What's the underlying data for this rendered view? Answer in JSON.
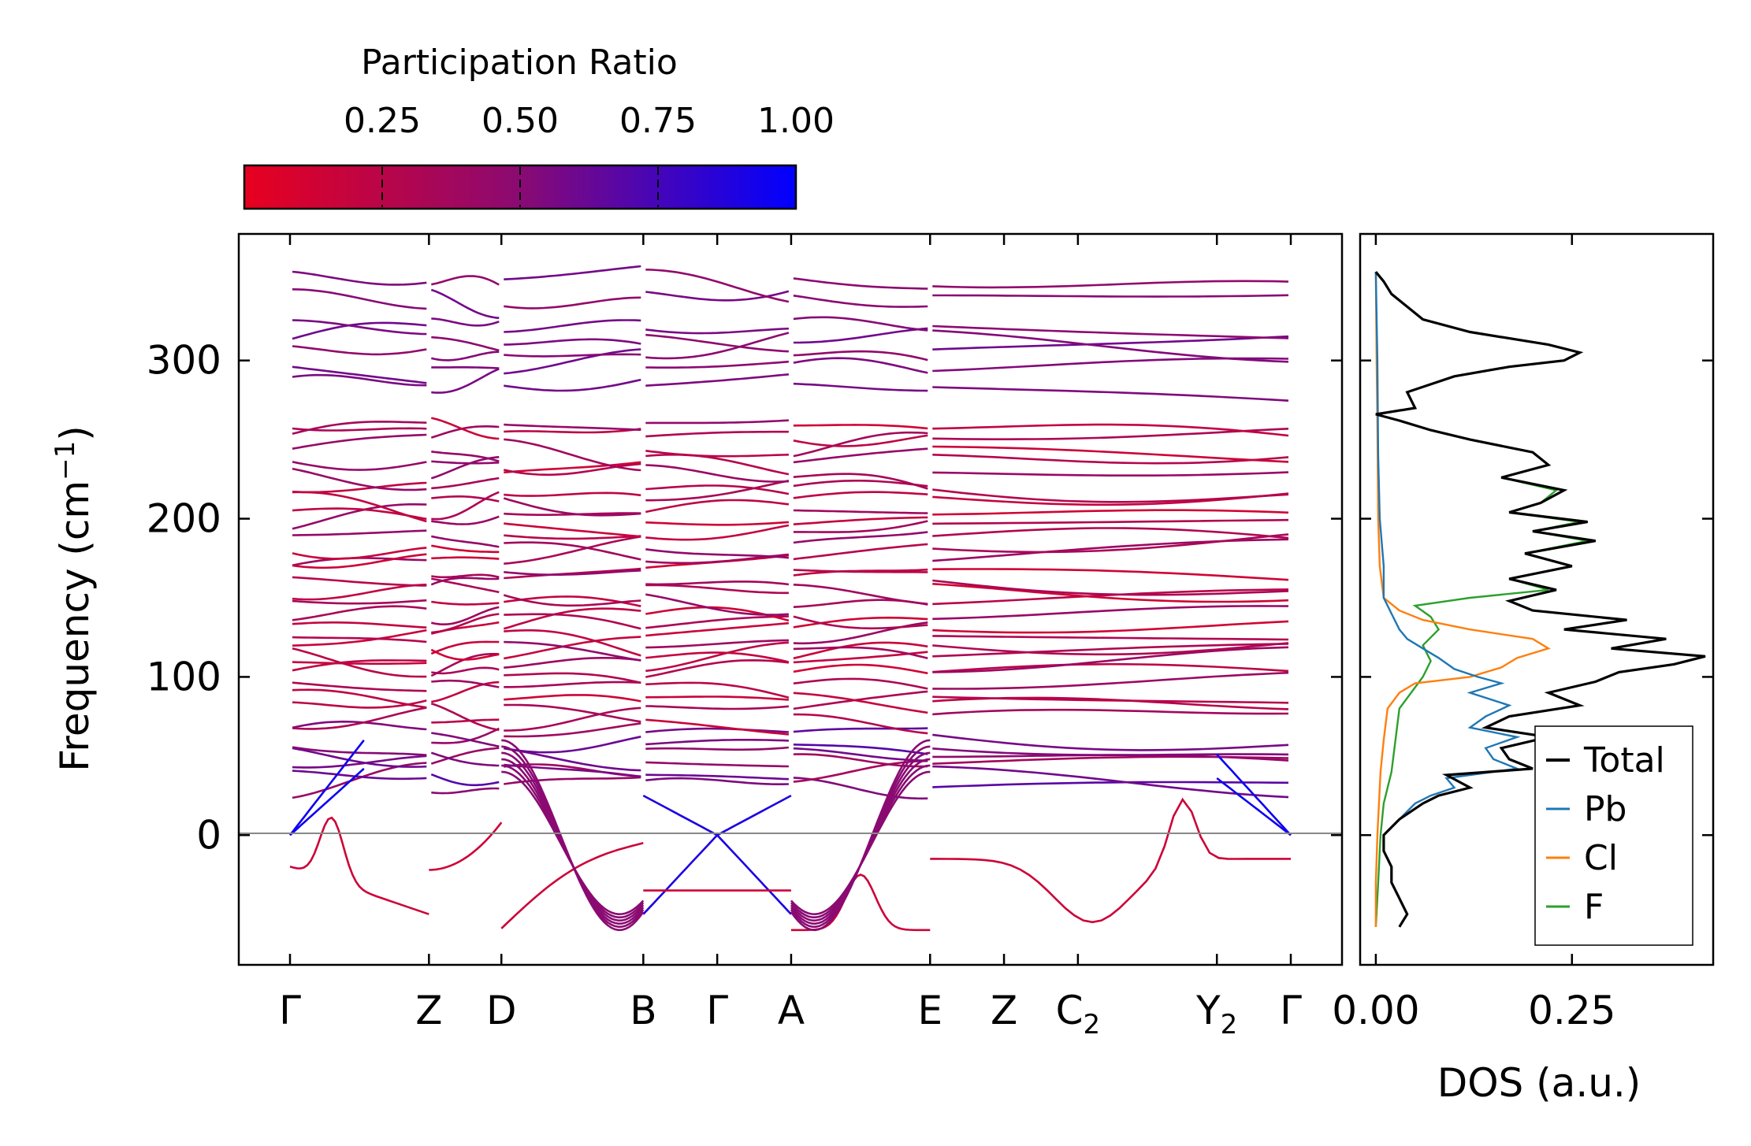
{
  "chart_data": [
    {
      "type": "line",
      "name": "phonon band structure",
      "ylabel": "Frequency (cm",
      "ylabel_sup": "−1",
      "ylabel_end": ")",
      "ylim": [
        -82,
        380
      ],
      "yticks": [
        0,
        100,
        200,
        300
      ],
      "k_path": [
        {
          "label": "Γ",
          "sub": "",
          "pos": 0.0
        },
        {
          "label": "Z",
          "sub": "",
          "pos": 0.94
        },
        {
          "label": "D",
          "sub": "",
          "pos": 1.43
        },
        {
          "label": "B",
          "sub": "",
          "pos": 2.39
        },
        {
          "label": "Γ",
          "sub": "",
          "pos": 2.89
        },
        {
          "label": "A",
          "sub": "",
          "pos": 3.39
        },
        {
          "label": "E",
          "sub": "",
          "pos": 4.33
        },
        {
          "label": "Z",
          "sub": "",
          "pos": 4.83
        },
        {
          "label": "C",
          "sub": "2",
          "pos": 5.33
        },
        {
          "label": "Y",
          "sub": "2",
          "pos": 6.27
        },
        {
          "label": "Γ",
          "sub": "",
          "pos": 6.77
        }
      ],
      "branch_breaks": [
        0.94,
        1.43,
        2.39,
        3.39,
        4.33
      ],
      "colorbar": {
        "title": "Participation Ratio",
        "range": [
          0.0,
          1.0
        ],
        "ticks": [
          "0.25",
          "0.50",
          "0.75",
          "1.00"
        ],
        "low_color": "#e8001f",
        "mid_color": "#8a0a72",
        "high_color": "#0000ff"
      },
      "acoustic_modes": {
        "start_values": [
          0,
          0,
          0
        ],
        "note": "three acoustic branches start at 0 at Γ"
      },
      "optical_band_levels": [
        30,
        38,
        46,
        52,
        58,
        64,
        72,
        80,
        88,
        96,
        103,
        109,
        114,
        120,
        126,
        132,
        140,
        148,
        155,
        162,
        168,
        175,
        183,
        190,
        197,
        205,
        213,
        220,
        228,
        236,
        244,
        252,
        260,
        284,
        296,
        306,
        314,
        322,
        340,
        352
      ],
      "imaginary_modes_min": -60
    },
    {
      "type": "line",
      "name": "phonon density of states",
      "xlabel": "DOS (a.u.)",
      "xlim": [
        -0.02,
        0.43
      ],
      "xticks": [
        "0.00",
        "0.25"
      ],
      "xtick_values": [
        0.0,
        0.25
      ],
      "ylim": [
        -82,
        380
      ],
      "series": [
        {
          "name": "Total",
          "color": "#000000",
          "freq": [
            -58,
            -50,
            -40,
            -30,
            -20,
            -10,
            0,
            10,
            20,
            25,
            30,
            38,
            42,
            48,
            55,
            62,
            68,
            75,
            82,
            90,
            97,
            103,
            108,
            113,
            118,
            124,
            130,
            136,
            142,
            148,
            155,
            162,
            170,
            178,
            186,
            192,
            198,
            204,
            210,
            218,
            226,
            234,
            242,
            250,
            256,
            262,
            266,
            270,
            280,
            290,
            296,
            300,
            305,
            310,
            318,
            326,
            334,
            342,
            350,
            356
          ],
          "dos": [
            0.03,
            0.04,
            0.03,
            0.02,
            0.02,
            0.01,
            0.01,
            0.03,
            0.06,
            0.08,
            0.12,
            0.09,
            0.2,
            0.17,
            0.16,
            0.22,
            0.14,
            0.17,
            0.26,
            0.22,
            0.28,
            0.31,
            0.38,
            0.42,
            0.3,
            0.37,
            0.24,
            0.32,
            0.2,
            0.17,
            0.23,
            0.17,
            0.25,
            0.19,
            0.28,
            0.2,
            0.27,
            0.17,
            0.21,
            0.24,
            0.16,
            0.22,
            0.2,
            0.12,
            0.07,
            0.03,
            0.0,
            0.05,
            0.04,
            0.1,
            0.17,
            0.24,
            0.26,
            0.22,
            0.12,
            0.06,
            0.04,
            0.02,
            0.01,
            0.0
          ]
        },
        {
          "name": "Pb",
          "color": "#1f77b4",
          "freq": [
            -58,
            -50,
            -40,
            -30,
            -20,
            -10,
            0,
            10,
            20,
            25,
            30,
            36,
            42,
            48,
            55,
            62,
            68,
            75,
            82,
            90,
            96,
            100,
            105,
            112,
            118,
            124,
            130,
            140,
            150,
            170,
            200,
            240,
            300,
            356
          ],
          "dos": [
            0.03,
            0.04,
            0.03,
            0.02,
            0.02,
            0.01,
            0.01,
            0.03,
            0.05,
            0.07,
            0.1,
            0.09,
            0.18,
            0.15,
            0.14,
            0.18,
            0.12,
            0.14,
            0.17,
            0.12,
            0.16,
            0.13,
            0.1,
            0.08,
            0.06,
            0.04,
            0.03,
            0.02,
            0.01,
            0.01,
            0.005,
            0.003,
            0.002,
            0.0
          ]
        },
        {
          "name": "Cl",
          "color": "#ff7f0e",
          "freq": [
            -58,
            -30,
            0,
            20,
            40,
            60,
            80,
            90,
            96,
            100,
            106,
            112,
            118,
            124,
            130,
            136,
            142,
            150,
            170,
            200,
            260,
            300,
            356
          ],
          "dos": [
            0.0,
            0.0,
            0.002,
            0.004,
            0.006,
            0.01,
            0.015,
            0.03,
            0.05,
            0.12,
            0.16,
            0.18,
            0.22,
            0.2,
            0.12,
            0.06,
            0.03,
            0.01,
            0.005,
            0.003,
            0.002,
            0.001,
            0.0
          ]
        },
        {
          "name": "F",
          "color": "#2ca02c",
          "freq": [
            -58,
            -30,
            0,
            20,
            40,
            60,
            80,
            100,
            110,
            120,
            130,
            138,
            145,
            150,
            155,
            162,
            170,
            178,
            186,
            192,
            198,
            204,
            210,
            218,
            226,
            234,
            242,
            250,
            256,
            262,
            266,
            270,
            280,
            290,
            296,
            300,
            305,
            310,
            318,
            326,
            334,
            342,
            350,
            356
          ],
          "dos": [
            0.0,
            0.003,
            0.006,
            0.01,
            0.02,
            0.025,
            0.03,
            0.06,
            0.07,
            0.06,
            0.08,
            0.07,
            0.05,
            0.12,
            0.22,
            0.17,
            0.25,
            0.19,
            0.27,
            0.2,
            0.26,
            0.17,
            0.21,
            0.23,
            0.16,
            0.22,
            0.2,
            0.12,
            0.07,
            0.03,
            0.0,
            0.05,
            0.04,
            0.1,
            0.17,
            0.24,
            0.26,
            0.22,
            0.12,
            0.06,
            0.04,
            0.02,
            0.01,
            0.0
          ]
        }
      ],
      "legend": {
        "placement": "bottom-right",
        "entries": [
          "Total",
          "Pb",
          "Cl",
          "F"
        ]
      }
    }
  ]
}
